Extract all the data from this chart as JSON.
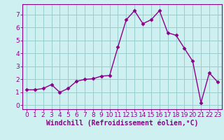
{
  "x": [
    0,
    1,
    2,
    3,
    4,
    5,
    6,
    7,
    8,
    9,
    10,
    11,
    12,
    13,
    14,
    15,
    16,
    17,
    18,
    19,
    20,
    21,
    22,
    23
  ],
  "y": [
    1.2,
    1.2,
    1.3,
    1.6,
    1.0,
    1.3,
    1.85,
    2.0,
    2.05,
    2.25,
    2.3,
    4.5,
    6.6,
    7.3,
    6.3,
    6.6,
    7.3,
    5.6,
    5.4,
    4.4,
    3.4,
    0.2,
    2.5,
    1.8
  ],
  "line_color": "#8B008B",
  "marker": "D",
  "marker_size": 2.5,
  "linewidth": 1.0,
  "bg_color": "#cff0f0",
  "grid_color": "#99cccc",
  "xlabel": "Windchill (Refroidissement éolien,°C)",
  "xlabel_fontsize": 7,
  "xtick_labels": [
    "0",
    "1",
    "2",
    "3",
    "4",
    "5",
    "6",
    "7",
    "8",
    "9",
    "10",
    "11",
    "12",
    "13",
    "14",
    "15",
    "16",
    "17",
    "18",
    "19",
    "20",
    "21",
    "22",
    "23"
  ],
  "ytick_values": [
    0,
    1,
    2,
    3,
    4,
    5,
    6,
    7
  ],
  "xlim": [
    -0.5,
    23.5
  ],
  "ylim": [
    -0.3,
    7.8
  ],
  "tick_color": "#8B008B",
  "tick_fontsize": 6.5,
  "spine_color": "#8B008B",
  "title_bg_color": "#8B008B"
}
